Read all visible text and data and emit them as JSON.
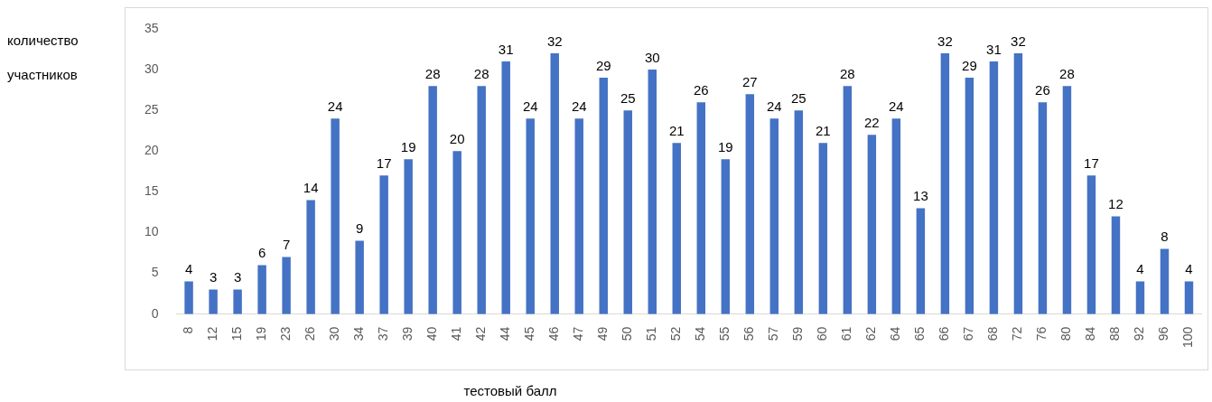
{
  "chart_data": {
    "type": "bar",
    "xlabel": "тестовый балл",
    "ylabel": "количество участников",
    "categories": [
      "8",
      "12",
      "15",
      "19",
      "23",
      "26",
      "30",
      "34",
      "37",
      "39",
      "40",
      "41",
      "42",
      "44",
      "45",
      "46",
      "47",
      "49",
      "50",
      "51",
      "52",
      "54",
      "55",
      "56",
      "57",
      "59",
      "60",
      "61",
      "62",
      "64",
      "65",
      "66",
      "67",
      "68",
      "72",
      "76",
      "80",
      "84",
      "88",
      "92",
      "96",
      "100"
    ],
    "values": [
      4,
      3,
      3,
      6,
      7,
      14,
      24,
      9,
      17,
      19,
      28,
      20,
      28,
      31,
      24,
      32,
      24,
      29,
      25,
      30,
      21,
      26,
      19,
      27,
      24,
      25,
      21,
      28,
      22,
      24,
      13,
      32,
      29,
      31,
      32,
      26,
      28,
      17,
      12,
      4,
      8,
      4
    ],
    "color": "#4472c4",
    "ylim": [
      0,
      35
    ],
    "yticks": [
      0,
      5,
      10,
      15,
      20,
      25,
      30,
      35
    ],
    "grid": false,
    "legend": false,
    "data_labels": true
  }
}
